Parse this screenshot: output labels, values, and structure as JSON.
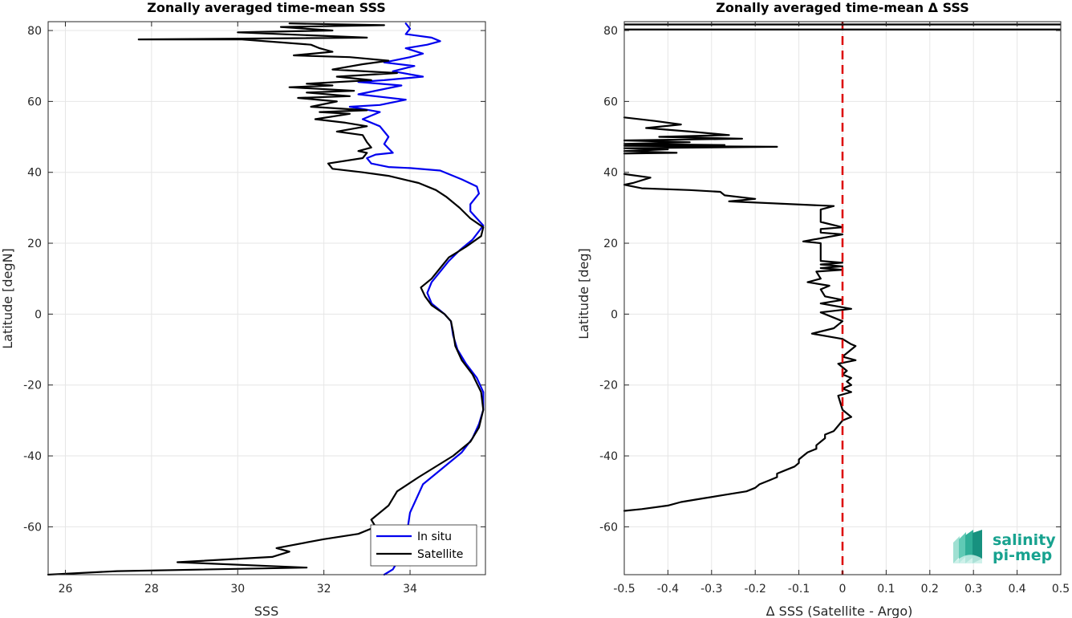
{
  "chart_data": [
    {
      "type": "line",
      "title": "Zonally averaged time-mean SSS",
      "xlabel": "SSS",
      "ylabel": "Latitude [degN]",
      "xlim": [
        25.6,
        35.75
      ],
      "ylim": [
        -73.5,
        82.5
      ],
      "xticks": [
        26,
        28,
        30,
        32,
        34
      ],
      "yticks": [
        -60,
        -40,
        -20,
        0,
        20,
        40,
        60,
        80
      ],
      "grid": true,
      "legend": "bottom-right",
      "series": [
        {
          "name": "In situ",
          "color": "#0000ee",
          "points": [
            [
              33.4,
              -73.5
            ],
            [
              33.6,
              -72
            ],
            [
              33.8,
              -68
            ],
            [
              33.9,
              -64
            ],
            [
              33.95,
              -60
            ],
            [
              34.0,
              -56
            ],
            [
              34.15,
              -52
            ],
            [
              34.3,
              -48
            ],
            [
              34.6,
              -45
            ],
            [
              34.9,
              -42
            ],
            [
              35.2,
              -39
            ],
            [
              35.45,
              -35
            ],
            [
              35.6,
              -31
            ],
            [
              35.7,
              -27
            ],
            [
              35.7,
              -22
            ],
            [
              35.55,
              -18
            ],
            [
              35.3,
              -14
            ],
            [
              35.1,
              -10
            ],
            [
              35.0,
              -6
            ],
            [
              34.95,
              -2
            ],
            [
              34.8,
              0
            ],
            [
              34.5,
              3
            ],
            [
              34.4,
              6
            ],
            [
              34.5,
              9
            ],
            [
              34.7,
              12
            ],
            [
              34.9,
              15
            ],
            [
              35.15,
              18
            ],
            [
              35.45,
              21
            ],
            [
              35.7,
              25
            ],
            [
              35.55,
              27
            ],
            [
              35.4,
              29
            ],
            [
              35.4,
              31
            ],
            [
              35.6,
              34
            ],
            [
              35.55,
              36
            ],
            [
              35.2,
              38
            ],
            [
              34.7,
              40.5
            ],
            [
              34.0,
              41.2
            ],
            [
              33.5,
              41.5
            ],
            [
              33.1,
              42.5
            ],
            [
              33.0,
              44
            ],
            [
              33.2,
              45
            ],
            [
              33.6,
              45.5
            ],
            [
              33.4,
              48
            ],
            [
              33.5,
              50
            ],
            [
              33.3,
              53
            ],
            [
              32.9,
              55
            ],
            [
              33.3,
              57
            ],
            [
              32.6,
              58.5
            ],
            [
              33.3,
              59
            ],
            [
              33.9,
              60.5
            ],
            [
              32.8,
              62
            ],
            [
              33.8,
              64.5
            ],
            [
              32.8,
              65.5
            ],
            [
              33.4,
              66
            ],
            [
              34.3,
              67
            ],
            [
              33.6,
              68.5
            ],
            [
              34.1,
              70
            ],
            [
              33.4,
              71
            ],
            [
              34.0,
              72.5
            ],
            [
              34.3,
              73.5
            ],
            [
              33.9,
              75
            ],
            [
              34.4,
              76
            ],
            [
              34.7,
              77
            ],
            [
              34.5,
              78
            ],
            [
              33.9,
              79
            ],
            [
              34.0,
              80.5
            ],
            [
              33.9,
              82
            ]
          ]
        },
        {
          "name": "Satellite",
          "color": "#000000",
          "points": [
            [
              25.6,
              -73.5
            ],
            [
              27.2,
              -72.5
            ],
            [
              31.6,
              -71.5
            ],
            [
              28.6,
              -70
            ],
            [
              30.8,
              -68.5
            ],
            [
              31.2,
              -67
            ],
            [
              30.9,
              -66
            ],
            [
              32.0,
              -63.5
            ],
            [
              32.8,
              -62
            ],
            [
              33.2,
              -60
            ],
            [
              33.1,
              -58
            ],
            [
              33.5,
              -54
            ],
            [
              33.7,
              -50
            ],
            [
              34.2,
              -46
            ],
            [
              35.0,
              -40
            ],
            [
              35.4,
              -36
            ],
            [
              35.6,
              -32
            ],
            [
              35.7,
              -27
            ],
            [
              35.65,
              -22
            ],
            [
              35.45,
              -17
            ],
            [
              35.2,
              -13
            ],
            [
              35.05,
              -9
            ],
            [
              35.0,
              -5
            ],
            [
              34.95,
              -2
            ],
            [
              34.8,
              0
            ],
            [
              34.5,
              2.5
            ],
            [
              34.35,
              5
            ],
            [
              34.25,
              7.5
            ],
            [
              34.5,
              10
            ],
            [
              34.7,
              13
            ],
            [
              34.9,
              16
            ],
            [
              35.3,
              19
            ],
            [
              35.65,
              22
            ],
            [
              35.7,
              24.5
            ],
            [
              35.4,
              27
            ],
            [
              35.15,
              30
            ],
            [
              34.85,
              33
            ],
            [
              34.6,
              35
            ],
            [
              34.2,
              37
            ],
            [
              33.5,
              39
            ],
            [
              32.9,
              40
            ],
            [
              32.2,
              41
            ],
            [
              32.1,
              42.5
            ],
            [
              32.9,
              44
            ],
            [
              33.0,
              45.5
            ],
            [
              32.8,
              46
            ],
            [
              33.1,
              47
            ],
            [
              33.0,
              48.5
            ],
            [
              32.9,
              50.5
            ],
            [
              32.3,
              51.5
            ],
            [
              33.0,
              53
            ],
            [
              32.5,
              54
            ],
            [
              31.8,
              55
            ],
            [
              32.6,
              56.5
            ],
            [
              31.9,
              57
            ],
            [
              33.0,
              57.5
            ],
            [
              31.7,
              58.5
            ],
            [
              32.3,
              60
            ],
            [
              31.4,
              61
            ],
            [
              32.6,
              61.5
            ],
            [
              31.6,
              62.5
            ],
            [
              32.7,
              63
            ],
            [
              31.2,
              64
            ],
            [
              32.2,
              64.5
            ],
            [
              31.6,
              65
            ],
            [
              33.1,
              66
            ],
            [
              32.3,
              67
            ],
            [
              33.7,
              68
            ],
            [
              32.2,
              69
            ],
            [
              32.9,
              70.5
            ],
            [
              33.5,
              71.5
            ],
            [
              32.6,
              72.5
            ],
            [
              31.3,
              73
            ],
            [
              32.2,
              74
            ],
            [
              31.9,
              75
            ],
            [
              31.7,
              76
            ],
            [
              30.1,
              77.5
            ],
            [
              27.7,
              77.5
            ],
            [
              33.0,
              78
            ],
            [
              30.0,
              79.5
            ],
            [
              32.2,
              80
            ],
            [
              31.0,
              81
            ],
            [
              33.4,
              81.5
            ],
            [
              31.2,
              82
            ]
          ]
        }
      ]
    },
    {
      "type": "line",
      "title": "Zonally averaged time-mean Δ SSS",
      "xlabel": "Δ SSS (Satellite - Argo)",
      "ylabel": "Latitude [deg]",
      "xlim": [
        -0.5,
        0.5
      ],
      "ylim": [
        -73.5,
        82.5
      ],
      "xticks": [
        -0.5,
        -0.4,
        -0.3,
        -0.2,
        -0.1,
        0,
        0.1,
        0.2,
        0.3,
        0.4,
        0.5
      ],
      "yticks": [
        -60,
        -40,
        -20,
        0,
        20,
        40,
        60,
        80
      ],
      "grid": true,
      "reference_line": {
        "x": 0,
        "color": "#dd0000",
        "style": "dashed"
      },
      "series": [
        {
          "name": "",
          "color": "#000000",
          "segments": [
            [
              [
                -0.5,
                55.5
              ],
              [
                -0.43,
                54.5
              ],
              [
                -0.37,
                53.5
              ],
              [
                -0.45,
                52.5
              ],
              [
                -0.35,
                51.5
              ],
              [
                -0.26,
                50.5
              ],
              [
                -0.42,
                50
              ],
              [
                -0.23,
                49.5
              ],
              [
                -0.5,
                49
              ],
              [
                -0.35,
                48.5
              ],
              [
                -0.5,
                48
              ],
              [
                -0.27,
                47.7
              ],
              [
                -0.5,
                47.5
              ],
              [
                -0.15,
                47.2
              ],
              [
                -0.5,
                46.8
              ],
              [
                -0.4,
                46.5
              ],
              [
                -0.5,
                46
              ],
              [
                -0.38,
                45.5
              ],
              [
                -0.5,
                45.3
              ]
            ],
            [
              [
                -0.5,
                39.5
              ],
              [
                -0.44,
                38.5
              ],
              [
                -0.48,
                37
              ],
              [
                -0.5,
                36.5
              ],
              [
                -0.46,
                35.5
              ],
              [
                -0.35,
                35
              ],
              [
                -0.28,
                34.5
              ],
              [
                -0.27,
                33.5
              ],
              [
                -0.2,
                32.5
              ],
              [
                -0.26,
                31.8
              ],
              [
                -0.02,
                30.5
              ],
              [
                -0.05,
                29.5
              ],
              [
                -0.05,
                26
              ],
              [
                0.0,
                24.5
              ],
              [
                -0.05,
                24
              ],
              [
                -0.05,
                23
              ],
              [
                0.0,
                22.5
              ],
              [
                -0.09,
                20.5
              ],
              [
                -0.05,
                20
              ],
              [
                -0.05,
                15
              ],
              [
                0.0,
                14.5
              ],
              [
                -0.05,
                14
              ],
              [
                0.0,
                13.5
              ],
              [
                -0.05,
                13
              ],
              [
                0.0,
                12.5
              ],
              [
                -0.06,
                12
              ],
              [
                -0.05,
                10
              ],
              [
                -0.08,
                9
              ],
              [
                -0.03,
                8
              ],
              [
                -0.05,
                7
              ],
              [
                -0.04,
                5
              ],
              [
                0.0,
                4
              ],
              [
                -0.05,
                3
              ],
              [
                0.02,
                1.5
              ],
              [
                -0.05,
                0.5
              ],
              [
                0.0,
                -2
              ],
              [
                -0.02,
                -4
              ],
              [
                -0.07,
                -5.5
              ],
              [
                0.0,
                -7
              ],
              [
                0.02,
                -8.5
              ],
              [
                0.03,
                -9
              ],
              [
                0.01,
                -11
              ],
              [
                0.0,
                -12
              ],
              [
                0.03,
                -13
              ],
              [
                -0.01,
                -14
              ],
              [
                0.0,
                -15
              ],
              [
                0.01,
                -16
              ],
              [
                0.0,
                -17
              ],
              [
                0.02,
                -18
              ],
              [
                0.01,
                -19
              ],
              [
                0.02,
                -20
              ],
              [
                0.0,
                -21
              ],
              [
                0.02,
                -22
              ],
              [
                -0.01,
                -23
              ],
              [
                0.0,
                -27
              ],
              [
                0.02,
                -29
              ],
              [
                0.0,
                -30
              ],
              [
                -0.01,
                -31.5
              ],
              [
                -0.02,
                -33
              ],
              [
                -0.04,
                -34
              ],
              [
                -0.04,
                -35
              ],
              [
                -0.05,
                -36
              ],
              [
                -0.06,
                -37
              ],
              [
                -0.06,
                -38
              ],
              [
                -0.08,
                -39
              ],
              [
                -0.09,
                -40
              ],
              [
                -0.1,
                -41
              ],
              [
                -0.1,
                -42
              ],
              [
                -0.11,
                -43
              ],
              [
                -0.13,
                -44
              ],
              [
                -0.15,
                -45
              ],
              [
                -0.15,
                -46
              ],
              [
                -0.17,
                -47
              ],
              [
                -0.19,
                -48
              ],
              [
                -0.2,
                -49
              ],
              [
                -0.22,
                -50
              ],
              [
                -0.27,
                -51
              ],
              [
                -0.32,
                -52
              ],
              [
                -0.37,
                -53
              ],
              [
                -0.4,
                -54
              ],
              [
                -0.46,
                -55
              ],
              [
                -0.5,
                -55.5
              ]
            ]
          ]
        }
      ]
    }
  ],
  "legend": {
    "items": [
      "In situ",
      "Satellite"
    ]
  },
  "logo": {
    "line1": "salinity",
    "line2": "pi-mep"
  }
}
